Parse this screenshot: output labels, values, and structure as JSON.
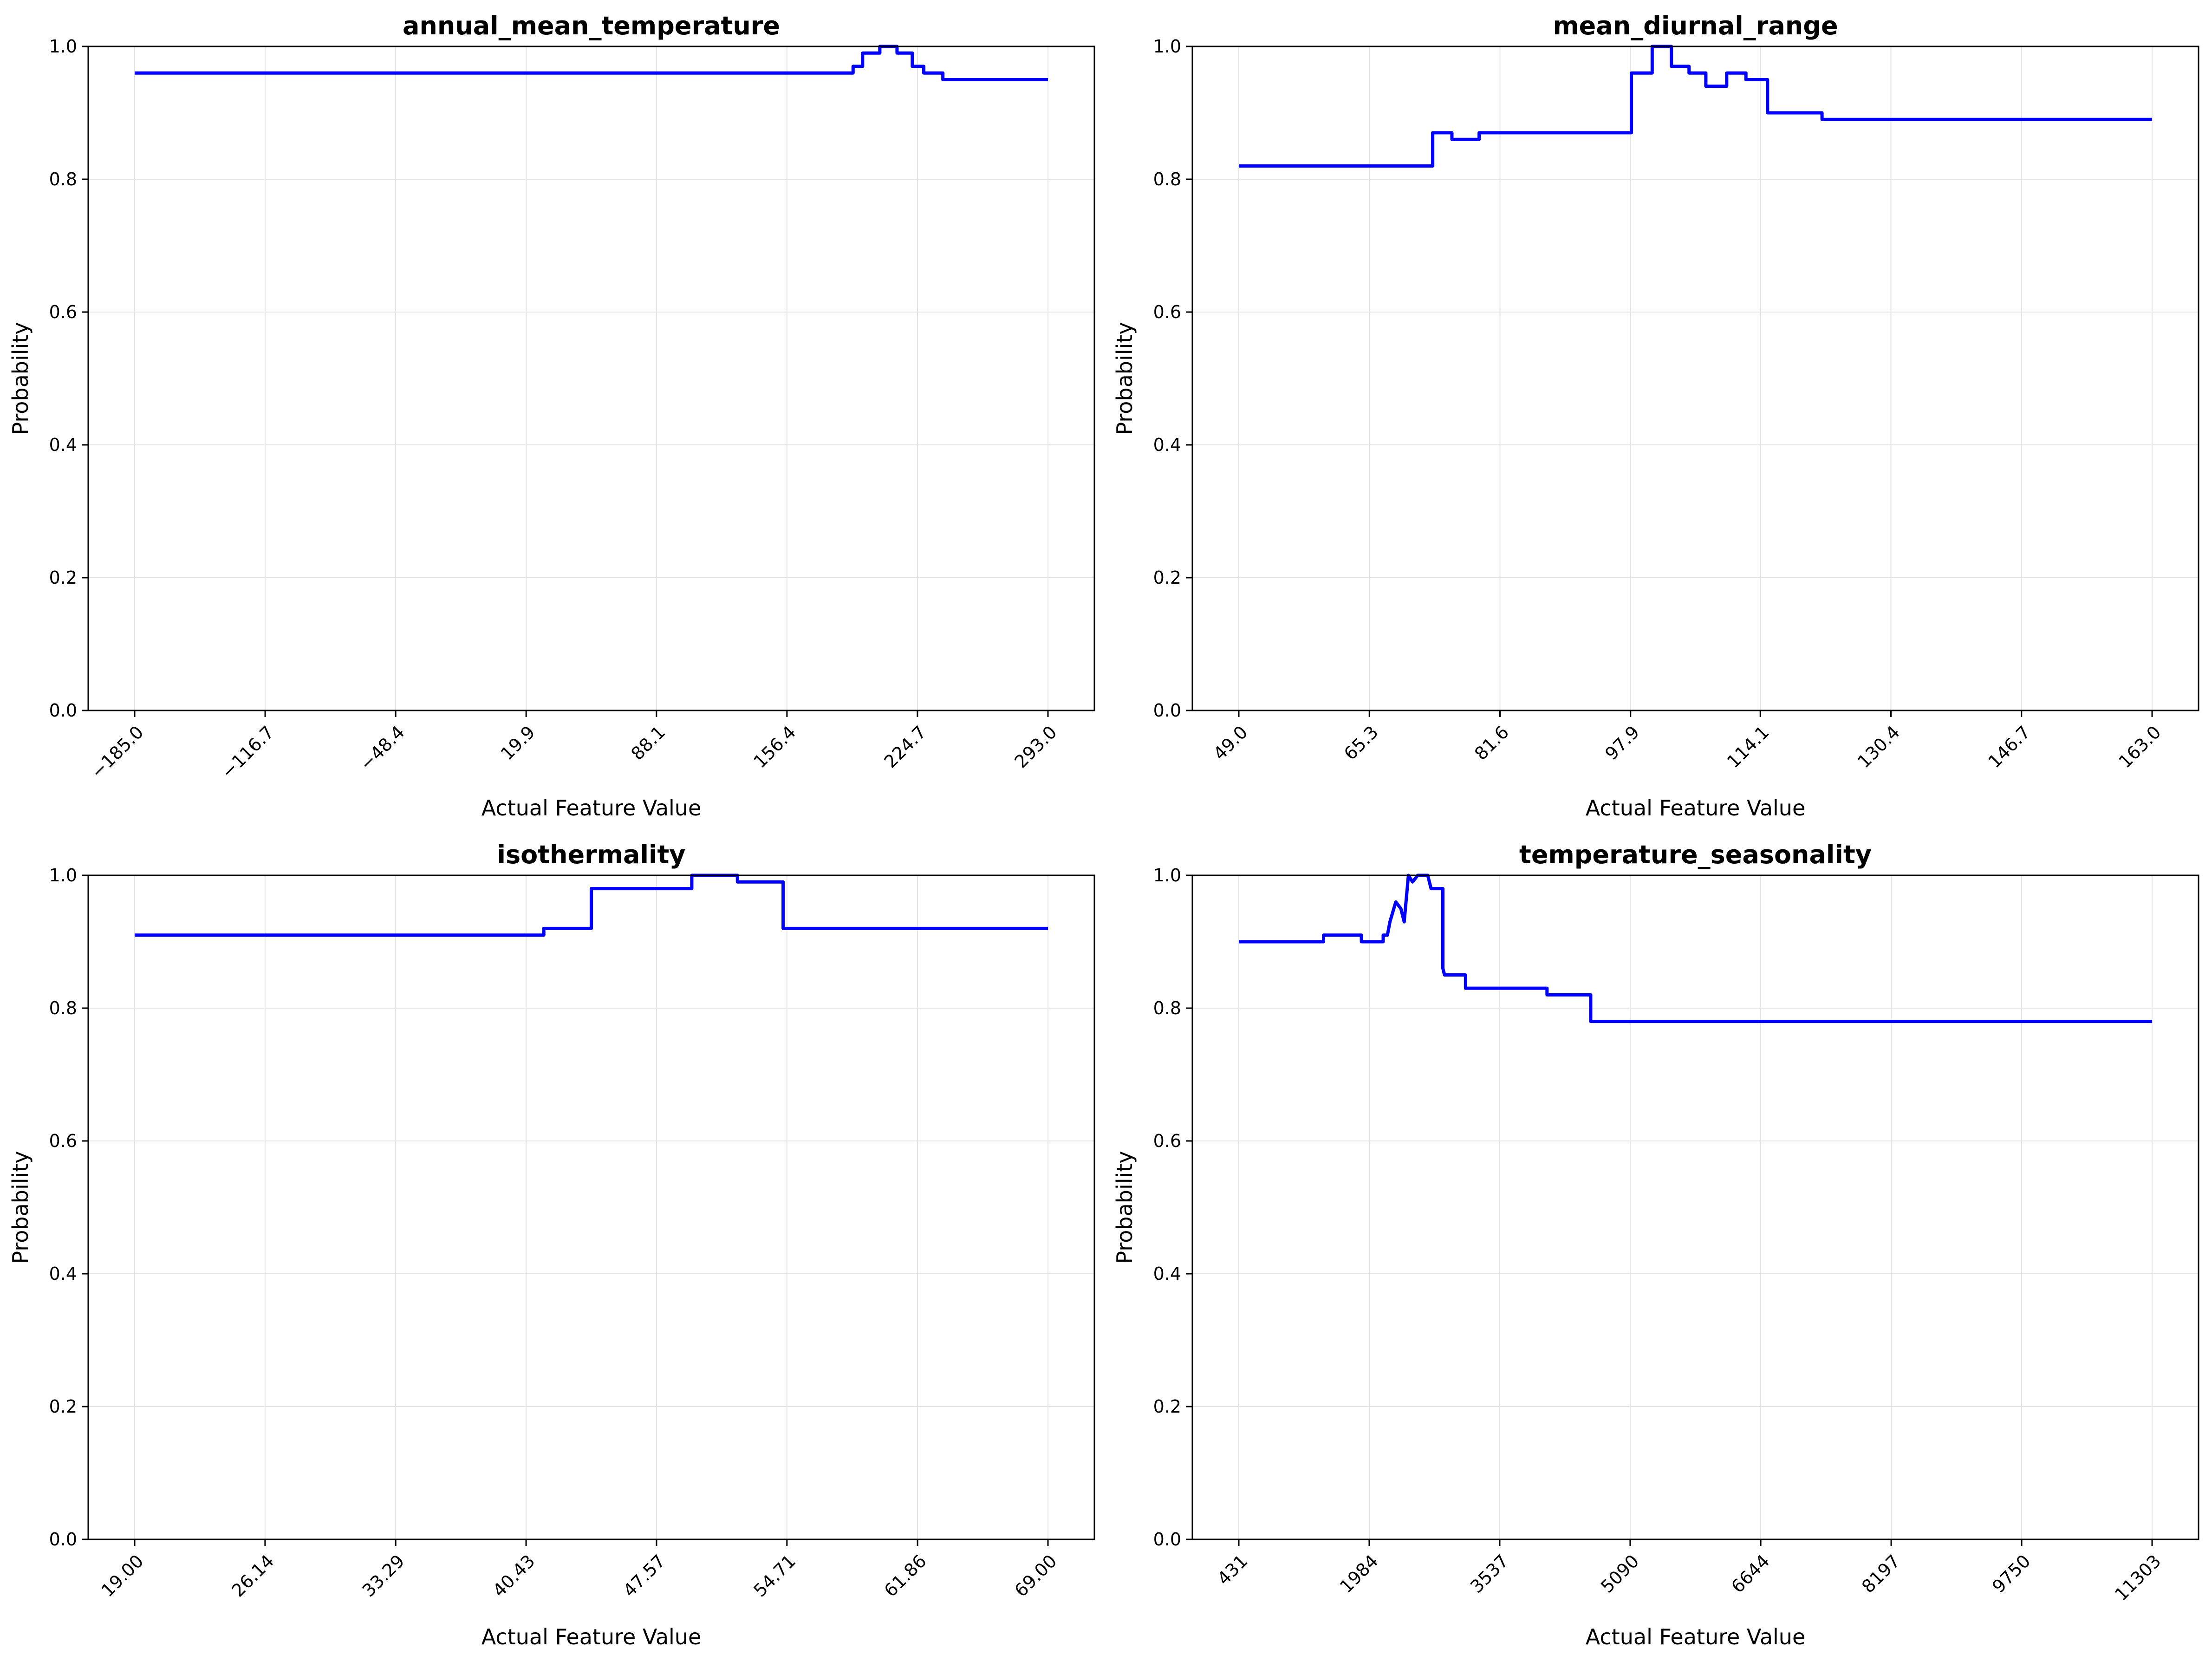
{
  "colors": {
    "line": "#0000ff",
    "grid": "#e3e3e3",
    "axis": "#000000",
    "background": "#ffffff"
  },
  "chart_data": [
    {
      "type": "line",
      "title": "annual_mean_temperature",
      "xlabel": "Actual Feature Value",
      "ylabel": "Probability",
      "xlim": [
        -185.0,
        293.0
      ],
      "ylim": [
        0,
        1
      ],
      "grid": true,
      "xticks": [
        -185.0,
        -116.7,
        -48.4,
        19.9,
        88.1,
        156.4,
        224.7,
        293.0
      ],
      "xtick_labels": [
        "−185.0",
        "−116.7",
        "−48.4",
        "19.9",
        "88.1",
        "156.4",
        "224.7",
        "293.0"
      ],
      "yticks": [
        0,
        0.2,
        0.4,
        0.6,
        0.8,
        1.0
      ],
      "ytick_labels": [
        "0.0",
        "0.2",
        "0.4",
        "0.6",
        "0.8",
        "1.0"
      ],
      "series": [
        {
          "x": [
            -185.0,
            191.0,
            191.0,
            196.0,
            196.0,
            205.0,
            205.0,
            214.0,
            214.0,
            222.0,
            222.0,
            228.0,
            228.0,
            238.0,
            238.0,
            243.0,
            243.0,
            293.0
          ],
          "y": [
            0.96,
            0.96,
            0.97,
            0.97,
            0.99,
            0.99,
            1.0,
            1.0,
            0.99,
            0.99,
            0.97,
            0.97,
            0.96,
            0.96,
            0.95,
            0.95,
            0.95,
            0.95
          ]
        }
      ]
    },
    {
      "type": "line",
      "title": "mean_diurnal_range",
      "xlabel": "Actual Feature Value",
      "ylabel": "Probability",
      "xlim": [
        49.0,
        163.0
      ],
      "ylim": [
        0,
        1
      ],
      "grid": true,
      "xticks": [
        49.0,
        65.3,
        81.6,
        97.9,
        114.1,
        130.4,
        146.7,
        163.0
      ],
      "xtick_labels": [
        "49.0",
        "65.3",
        "81.6",
        "97.9",
        "114.1",
        "130.4",
        "146.7",
        "163.0"
      ],
      "yticks": [
        0,
        0.2,
        0.4,
        0.6,
        0.8,
        1.0
      ],
      "ytick_labels": [
        "0.0",
        "0.2",
        "0.4",
        "0.6",
        "0.8",
        "1.0"
      ],
      "series": [
        {
          "x": [
            49.0,
            73.2,
            73.2,
            75.6,
            75.6,
            79.0,
            79.0,
            98.0,
            98.0,
            100.6,
            100.6,
            103.0,
            103.0,
            105.2,
            105.2,
            107.3,
            107.3,
            109.9,
            109.9,
            112.3,
            112.3,
            115.0,
            115.0,
            117.0,
            117.0,
            121.8,
            121.8,
            163.0
          ],
          "y": [
            0.82,
            0.82,
            0.87,
            0.87,
            0.86,
            0.86,
            0.87,
            0.87,
            0.96,
            0.96,
            1.0,
            1.0,
            0.97,
            0.97,
            0.96,
            0.96,
            0.94,
            0.94,
            0.96,
            0.96,
            0.95,
            0.95,
            0.9,
            0.9,
            0.9,
            0.9,
            0.89,
            0.89
          ]
        }
      ]
    },
    {
      "type": "line",
      "title": "isothermality",
      "xlabel": "Actual Feature Value",
      "ylabel": "Probability",
      "xlim": [
        19.0,
        69.0
      ],
      "ylim": [
        0,
        1
      ],
      "grid": true,
      "xticks": [
        19.0,
        26.14,
        33.29,
        40.43,
        47.57,
        54.71,
        61.86,
        69.0
      ],
      "xtick_labels": [
        "19.00",
        "26.14",
        "33.29",
        "40.43",
        "47.57",
        "54.71",
        "61.86",
        "69.00"
      ],
      "yticks": [
        0,
        0.2,
        0.4,
        0.6,
        0.8,
        1.0
      ],
      "ytick_labels": [
        "0.0",
        "0.2",
        "0.4",
        "0.6",
        "0.8",
        "1.0"
      ],
      "series": [
        {
          "x": [
            19.0,
            41.4,
            41.4,
            44.0,
            44.0,
            49.5,
            49.5,
            52.0,
            52.0,
            54.5,
            54.5,
            69.0
          ],
          "y": [
            0.91,
            0.91,
            0.92,
            0.92,
            0.98,
            0.98,
            1.0,
            1.0,
            0.99,
            0.99,
            0.92,
            0.92
          ]
        }
      ]
    },
    {
      "type": "line",
      "title": "temperature_seasonality",
      "xlabel": "Actual Feature Value",
      "ylabel": "Probability",
      "xlim": [
        431,
        11303
      ],
      "ylim": [
        0,
        1
      ],
      "grid": true,
      "xticks": [
        431,
        1984,
        3537,
        5090,
        6644,
        8197,
        9750,
        11303
      ],
      "xtick_labels": [
        "431",
        "1984",
        "3537",
        "5090",
        "6644",
        "8197",
        "9750",
        "11303"
      ],
      "yticks": [
        0,
        0.2,
        0.4,
        0.6,
        0.8,
        1.0
      ],
      "ytick_labels": [
        "0.0",
        "0.2",
        "0.4",
        "0.6",
        "0.8",
        "1.0"
      ],
      "series": [
        {
          "x": [
            431,
            1440,
            1440,
            1890,
            1890,
            2150,
            2150,
            2200,
            2230,
            2300,
            2360,
            2400,
            2450,
            2500,
            2560,
            2600,
            2640,
            2680,
            2720,
            2730,
            2790,
            2860,
            2860,
            2880,
            2940,
            2940,
            3130,
            3130,
            4100,
            4100,
            4620,
            4620,
            11303
          ],
          "y": [
            0.9,
            0.9,
            0.91,
            0.91,
            0.9,
            0.9,
            0.91,
            0.91,
            0.93,
            0.96,
            0.95,
            0.93,
            1.0,
            0.99,
            1.0,
            1.0,
            1.0,
            1.0,
            0.98,
            0.98,
            0.98,
            0.98,
            0.86,
            0.85,
            0.85,
            0.85,
            0.85,
            0.83,
            0.83,
            0.82,
            0.82,
            0.78,
            0.78
          ]
        }
      ]
    }
  ]
}
